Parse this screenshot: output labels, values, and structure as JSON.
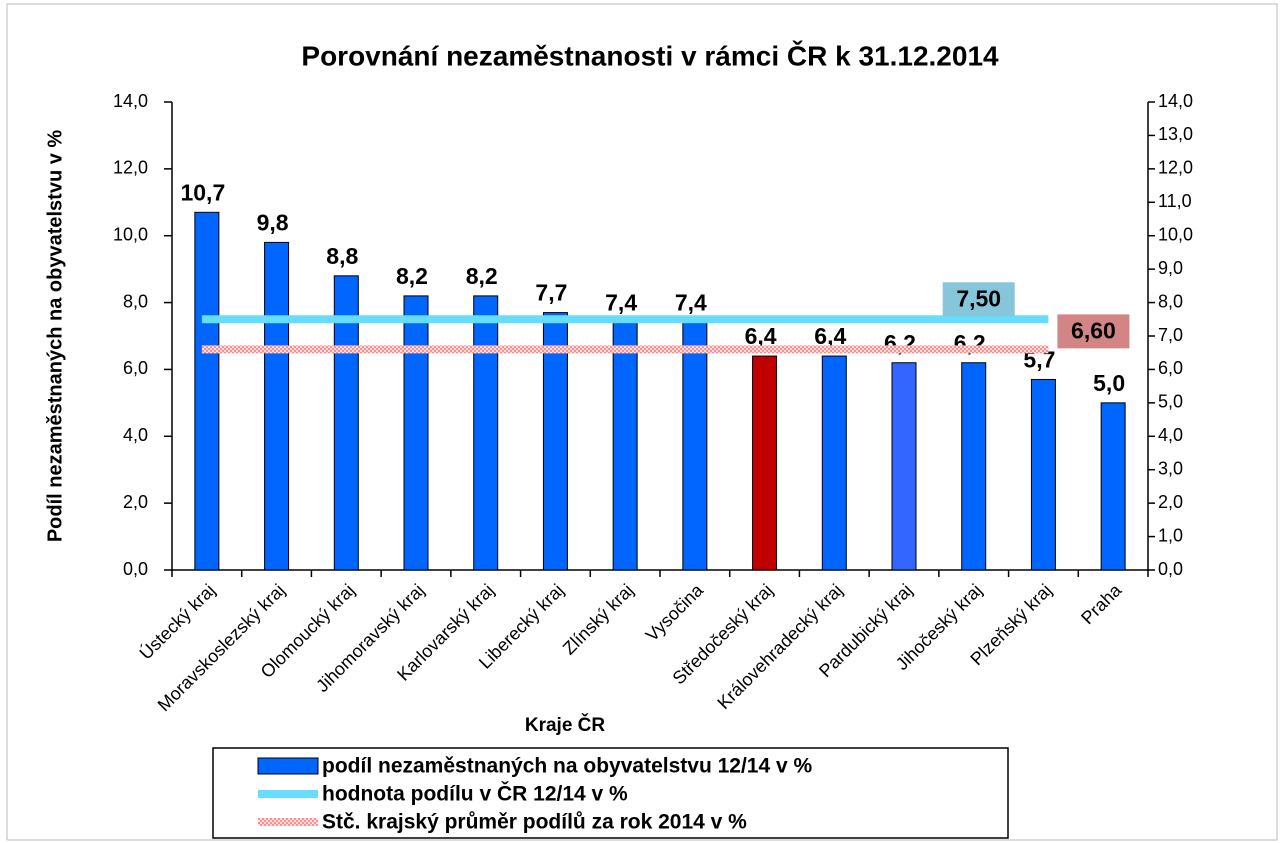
{
  "chart_data": {
    "type": "bar",
    "title": "Porovnání nezaměstnanosti v rámci ČR k 31.12.2014",
    "y_label": "Podíl nezaměstnaných  na obyvatelstvu v %",
    "x_label": "Kraje ČR",
    "categories": [
      "Ústecký kraj",
      "Moravskoslezský kraj",
      "Olomoucký kraj",
      "Jihomoravský kraj",
      "Karlovarský kraj",
      "Liberecký kraj",
      "Zlínský kraj",
      "Vysočina",
      "Středočeský kraj",
      "Královehradecký kraj",
      "Pardubický kraj",
      "Jihočeský kraj",
      "Plzeňský kraj",
      "Praha"
    ],
    "series": [
      {
        "name": "podíl nezaměstnaných na obyvatelstvu 12/14 v %",
        "color": "#0066ff",
        "colors": [
          "#0066ff",
          "#0066ff",
          "#0066ff",
          "#0066ff",
          "#0066ff",
          "#0066ff",
          "#0066ff",
          "#0066ff",
          "#c00000",
          "#0066ff",
          "#3366ff",
          "#0066ff",
          "#0066ff",
          "#0066ff"
        ],
        "values": [
          10.7,
          9.8,
          8.8,
          8.2,
          8.2,
          7.7,
          7.4,
          7.4,
          6.4,
          6.4,
          6.2,
          6.2,
          5.7,
          5.0
        ],
        "value_labels": [
          "10,7",
          "9,8",
          "8,8",
          "8,2",
          "8,2",
          "7,7",
          "7,4",
          "7,4",
          "6,4",
          "6,4",
          "6,2",
          "6,2",
          "5,7",
          "5,0"
        ]
      }
    ],
    "reference_lines": [
      {
        "name": "hodnota podílu v ČR 12/14 v %",
        "color": "#66ddff",
        "label_color": "#86c6da",
        "style": "solid",
        "value": 7.5,
        "value_label": "7,50"
      },
      {
        "name": "Stč. krajský průměr podílů za rok 2014 v %",
        "color": "#ff8f8f",
        "label_color": "#d38585",
        "style": "dotted",
        "value": 6.6,
        "value_label": "6,60"
      }
    ],
    "ylim": [
      0,
      14
    ],
    "yticks": [
      {
        "value": 0,
        "label": "0,0"
      },
      {
        "value": 2,
        "label": "2,0"
      },
      {
        "value": 4,
        "label": "4,0"
      },
      {
        "value": 6,
        "label": "6,0"
      },
      {
        "value": 8,
        "label": "8,0"
      },
      {
        "value": 10,
        "label": "10,0"
      },
      {
        "value": 12,
        "label": "12,0"
      },
      {
        "value": 14,
        "label": "14,0"
      }
    ],
    "y2lim": [
      0,
      14
    ],
    "y2ticks": [
      {
        "value": 0,
        "label": "0,0"
      },
      {
        "value": 1,
        "label": "1,0"
      },
      {
        "value": 2,
        "label": "2,0"
      },
      {
        "value": 3,
        "label": "3,0"
      },
      {
        "value": 4,
        "label": "4,0"
      },
      {
        "value": 5,
        "label": "5,0"
      },
      {
        "value": 6,
        "label": "6,0"
      },
      {
        "value": 7,
        "label": "7,0"
      },
      {
        "value": 8,
        "label": "8,0"
      },
      {
        "value": 9,
        "label": "9,0"
      },
      {
        "value": 10,
        "label": "10,0"
      },
      {
        "value": 11,
        "label": "11,0"
      },
      {
        "value": 12,
        "label": "12,0"
      },
      {
        "value": 13,
        "label": "13,0"
      },
      {
        "value": 14,
        "label": "14,0"
      }
    ],
    "grid": false
  }
}
